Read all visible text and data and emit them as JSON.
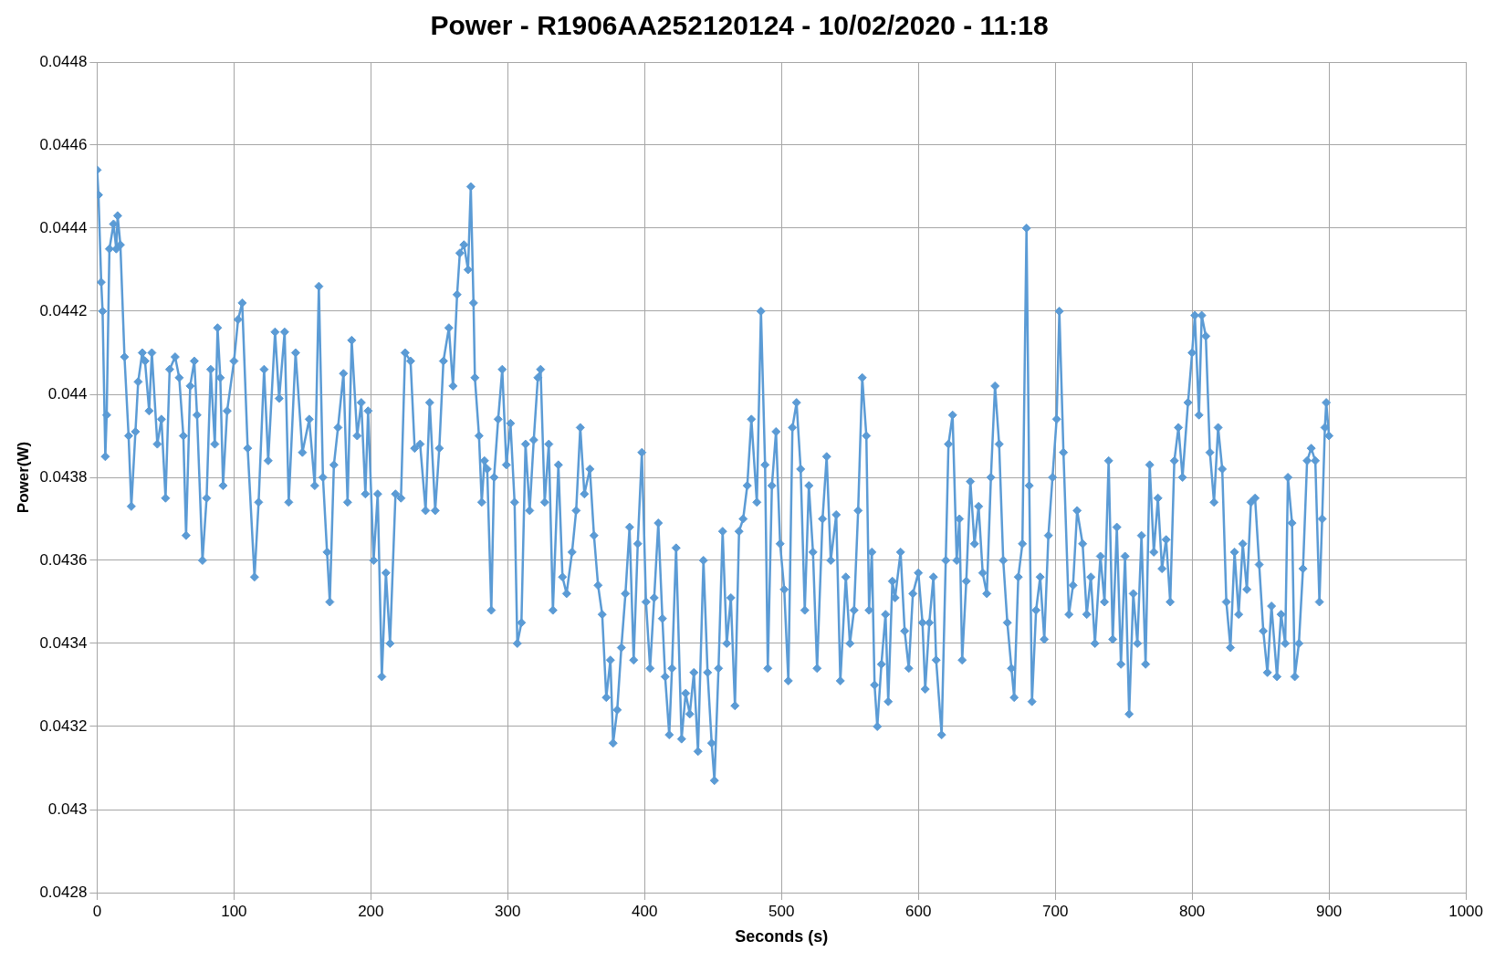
{
  "chart_data": {
    "type": "line",
    "title": "Power - R1906AA252120124 - 10/02/2020 - 11:18",
    "xlabel": "Seconds (s)",
    "ylabel": "Power(W)",
    "xlim": [
      0,
      1000
    ],
    "xticks": [
      0,
      100,
      200,
      300,
      400,
      500,
      600,
      700,
      800,
      900,
      1000
    ],
    "ylim": [
      0.0428,
      0.0448
    ],
    "yticks": [
      0.0428,
      0.043,
      0.0432,
      0.0434,
      0.0436,
      0.0438,
      0.044,
      0.0442,
      0.0444,
      0.0446,
      0.0448
    ],
    "grid": true,
    "legend": false,
    "marker": "diamond",
    "line_style": "solid",
    "series": [
      {
        "color": "#5b9bd5",
        "x": [
          0,
          1,
          3,
          4,
          6,
          7,
          9,
          12,
          14,
          15,
          17,
          20,
          23,
          25,
          28,
          30,
          33,
          35,
          38,
          40,
          44,
          47,
          50,
          53,
          57,
          60,
          63,
          65,
          68,
          71,
          73,
          77,
          80,
          83,
          86,
          88,
          90,
          92,
          95,
          100,
          103,
          106,
          110,
          115,
          118,
          122,
          125,
          130,
          133,
          137,
          140,
          145,
          150,
          155,
          159,
          162,
          165,
          168,
          170,
          173,
          176,
          180,
          183,
          186,
          190,
          193,
          196,
          198,
          202,
          205,
          208,
          211,
          214,
          218,
          222,
          225,
          229,
          232,
          236,
          240,
          243,
          247,
          250,
          253,
          257,
          260,
          263,
          265,
          268,
          271,
          273,
          275,
          276,
          279,
          281,
          283,
          285,
          288,
          290,
          293,
          296,
          299,
          302,
          305,
          307,
          310,
          313,
          316,
          319,
          322,
          324,
          327,
          330,
          333,
          337,
          340,
          343,
          347,
          350,
          353,
          356,
          360,
          363,
          366,
          369,
          372,
          375,
          377,
          380,
          383,
          386,
          389,
          392,
          395,
          398,
          401,
          404,
          407,
          410,
          413,
          415,
          418,
          420,
          423,
          427,
          430,
          433,
          436,
          439,
          443,
          446,
          449,
          451,
          454,
          457,
          460,
          463,
          466,
          469,
          472,
          475,
          478,
          482,
          485,
          488,
          490,
          493,
          496,
          499,
          502,
          505,
          508,
          511,
          514,
          517,
          520,
          523,
          526,
          530,
          533,
          536,
          540,
          543,
          547,
          550,
          553,
          556,
          559,
          562,
          564,
          566,
          568,
          570,
          573,
          576,
          578,
          581,
          583,
          587,
          590,
          593,
          596,
          600,
          603,
          605,
          608,
          611,
          613,
          617,
          620,
          622,
          625,
          628,
          630,
          632,
          635,
          638,
          641,
          644,
          647,
          650,
          653,
          656,
          659,
          662,
          665,
          668,
          670,
          673,
          676,
          679,
          681,
          683,
          686,
          689,
          692,
          695,
          698,
          701,
          703,
          706,
          710,
          713,
          716,
          720,
          723,
          726,
          729,
          733,
          736,
          739,
          742,
          745,
          748,
          751,
          754,
          757,
          760,
          763,
          766,
          769,
          772,
          775,
          778,
          781,
          784,
          787,
          790,
          793,
          797,
          800,
          802,
          805,
          807,
          810,
          813,
          816,
          819,
          822,
          825,
          828,
          831,
          834,
          837,
          840,
          843,
          846,
          849,
          852,
          855,
          858,
          862,
          865,
          868,
          870,
          873,
          875,
          878,
          881,
          884,
          887,
          890,
          893,
          895,
          897,
          898,
          900
        ],
        "values": [
          0.04454,
          0.04448,
          0.04427,
          0.0442,
          0.04385,
          0.04395,
          0.04435,
          0.04441,
          0.04435,
          0.04443,
          0.04436,
          0.04409,
          0.0439,
          0.04373,
          0.04391,
          0.04403,
          0.0441,
          0.04408,
          0.04396,
          0.0441,
          0.04388,
          0.04394,
          0.04375,
          0.04406,
          0.04409,
          0.04404,
          0.0439,
          0.04366,
          0.04402,
          0.04408,
          0.04395,
          0.0436,
          0.04375,
          0.04406,
          0.04388,
          0.04416,
          0.04404,
          0.04378,
          0.04396,
          0.04408,
          0.04418,
          0.04422,
          0.04387,
          0.04356,
          0.04374,
          0.04406,
          0.04384,
          0.04415,
          0.04399,
          0.04415,
          0.04374,
          0.0441,
          0.04386,
          0.04394,
          0.04378,
          0.04426,
          0.0438,
          0.04362,
          0.0435,
          0.04383,
          0.04392,
          0.04405,
          0.04374,
          0.04413,
          0.0439,
          0.04398,
          0.04376,
          0.04396,
          0.0436,
          0.04376,
          0.04332,
          0.04357,
          0.0434,
          0.04376,
          0.04375,
          0.0441,
          0.04408,
          0.04387,
          0.04388,
          0.04372,
          0.04398,
          0.04372,
          0.04387,
          0.04408,
          0.04416,
          0.04402,
          0.04424,
          0.04434,
          0.04436,
          0.0443,
          0.0445,
          0.04422,
          0.04404,
          0.0439,
          0.04374,
          0.04384,
          0.04382,
          0.04348,
          0.0438,
          0.04394,
          0.04406,
          0.04383,
          0.04393,
          0.04374,
          0.0434,
          0.04345,
          0.04388,
          0.04372,
          0.04389,
          0.04404,
          0.04406,
          0.04374,
          0.04388,
          0.04348,
          0.04383,
          0.04356,
          0.04352,
          0.04362,
          0.04372,
          0.04392,
          0.04376,
          0.04382,
          0.04366,
          0.04354,
          0.04347,
          0.04327,
          0.04336,
          0.04316,
          0.04324,
          0.04339,
          0.04352,
          0.04368,
          0.04336,
          0.04364,
          0.04386,
          0.0435,
          0.04334,
          0.04351,
          0.04369,
          0.04346,
          0.04332,
          0.04318,
          0.04334,
          0.04363,
          0.04317,
          0.04328,
          0.04323,
          0.04333,
          0.04314,
          0.0436,
          0.04333,
          0.04316,
          0.04307,
          0.04334,
          0.04367,
          0.0434,
          0.04351,
          0.04325,
          0.04367,
          0.0437,
          0.04378,
          0.04394,
          0.04374,
          0.0442,
          0.04383,
          0.04334,
          0.04378,
          0.04391,
          0.04364,
          0.04353,
          0.04331,
          0.04392,
          0.04398,
          0.04382,
          0.04348,
          0.04378,
          0.04362,
          0.04334,
          0.0437,
          0.04385,
          0.0436,
          0.04371,
          0.04331,
          0.04356,
          0.0434,
          0.04348,
          0.04372,
          0.04404,
          0.0439,
          0.04348,
          0.04362,
          0.0433,
          0.0432,
          0.04335,
          0.04347,
          0.04326,
          0.04355,
          0.04351,
          0.04362,
          0.04343,
          0.04334,
          0.04352,
          0.04357,
          0.04345,
          0.04329,
          0.04345,
          0.04356,
          0.04336,
          0.04318,
          0.0436,
          0.04388,
          0.04395,
          0.0436,
          0.0437,
          0.04336,
          0.04355,
          0.04379,
          0.04364,
          0.04373,
          0.04357,
          0.04352,
          0.0438,
          0.04402,
          0.04388,
          0.0436,
          0.04345,
          0.04334,
          0.04327,
          0.04356,
          0.04364,
          0.0444,
          0.04378,
          0.04326,
          0.04348,
          0.04356,
          0.04341,
          0.04366,
          0.0438,
          0.04394,
          0.0442,
          0.04386,
          0.04347,
          0.04354,
          0.04372,
          0.04364,
          0.04347,
          0.04356,
          0.0434,
          0.04361,
          0.0435,
          0.04384,
          0.04341,
          0.04368,
          0.04335,
          0.04361,
          0.04323,
          0.04352,
          0.0434,
          0.04366,
          0.04335,
          0.04383,
          0.04362,
          0.04375,
          0.04358,
          0.04365,
          0.0435,
          0.04384,
          0.04392,
          0.0438,
          0.04398,
          0.0441,
          0.04419,
          0.04395,
          0.04419,
          0.04414,
          0.04386,
          0.04374,
          0.04392,
          0.04382,
          0.0435,
          0.04339,
          0.04362,
          0.04347,
          0.04364,
          0.04353,
          0.04374,
          0.04375,
          0.04359,
          0.04343,
          0.04333,
          0.04349,
          0.04332,
          0.04347,
          0.0434,
          0.0438,
          0.04369,
          0.04332,
          0.0434,
          0.04358,
          0.04384,
          0.04387,
          0.04384,
          0.0435,
          0.0437,
          0.04392,
          0.04398,
          0.0439
        ]
      }
    ]
  }
}
